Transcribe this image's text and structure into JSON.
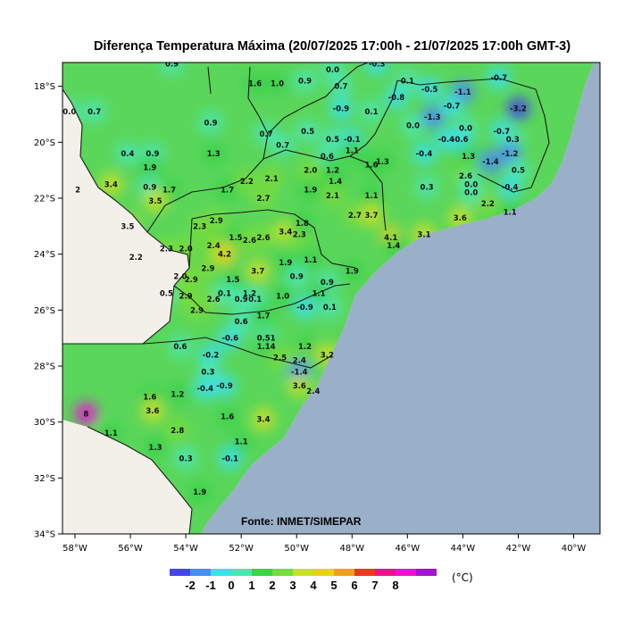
{
  "title": "Diferença Temperatura Máxima (20/07/2025 17:00h - 21/07/2025 17:00h GMT-3)",
  "source": "Fonte: INMET/SIMEPAR",
  "unit": "(°C)",
  "lat_labels": [
    "18°S",
    "20°S",
    "22°S",
    "24°S",
    "26°S",
    "28°S",
    "30°S",
    "32°S",
    "34°S"
  ],
  "lon_labels": [
    "58°W",
    "56°W",
    "54°W",
    "52°W",
    "50°W",
    "48°W",
    "46°W",
    "44°W",
    "42°W",
    "40°W"
  ],
  "colorbar": {
    "colors": [
      "#4646e6",
      "#4a8cf0",
      "#3ce0e6",
      "#4ee6b0",
      "#3cd24a",
      "#78dc3c",
      "#c8e02a",
      "#e6d21e",
      "#f0a020",
      "#e63c1e",
      "#e6148c",
      "#e614d2",
      "#a014d2"
    ],
    "labels": [
      "-2",
      "-1",
      "0",
      "1",
      "2",
      "3",
      "4",
      "5",
      "6",
      "7",
      "8"
    ]
  },
  "colors": {
    "land_default": "#5ad65a",
    "outside": "#f2f0e8",
    "ocean": "#9ab0c8"
  },
  "station_values": [
    {
      "v": "0.9",
      "lon": -54.5,
      "lat": -17.2
    },
    {
      "v": "1.6",
      "lon": -51.5,
      "lat": -17.9
    },
    {
      "v": "1.0",
      "lon": -50.7,
      "lat": -17.9
    },
    {
      "v": "0.9",
      "lon": -49.7,
      "lat": -17.8
    },
    {
      "v": "0.0",
      "lon": -48.7,
      "lat": -17.4
    },
    {
      "v": "0.7",
      "lon": -48.4,
      "lat": -18.0
    },
    {
      "v": "-0.3",
      "lon": -47.1,
      "lat": -17.2
    },
    {
      "v": "0.1",
      "lon": -46.0,
      "lat": -17.8
    },
    {
      "v": "-0.5",
      "lon": -45.2,
      "lat": -18.1
    },
    {
      "v": "-1.1",
      "lon": -44.0,
      "lat": -18.2
    },
    {
      "v": "-0.7",
      "lon": -42.7,
      "lat": -17.7
    },
    {
      "v": "-0.8",
      "lon": -46.4,
      "lat": -18.4
    },
    {
      "v": "-0.7",
      "lon": -44.4,
      "lat": -18.7
    },
    {
      "v": "-3.2",
      "lon": -42.0,
      "lat": -18.8
    },
    {
      "v": "0.0",
      "lon": -58.2,
      "lat": -18.9
    },
    {
      "v": "0.7",
      "lon": -57.3,
      "lat": -18.9
    },
    {
      "v": "0.9",
      "lon": -53.1,
      "lat": -19.3
    },
    {
      "v": "-0.9",
      "lon": -48.4,
      "lat": -18.8
    },
    {
      "v": "0.1",
      "lon": -47.3,
      "lat": -18.9
    },
    {
      "v": "-1.3",
      "lon": -45.1,
      "lat": -19.1
    },
    {
      "v": "0.0",
      "lon": -45.8,
      "lat": -19.4
    },
    {
      "v": "0.0",
      "lon": -43.9,
      "lat": -19.5
    },
    {
      "v": "0.5",
      "lon": -49.6,
      "lat": -19.6
    },
    {
      "v": "0.7",
      "lon": -51.1,
      "lat": -19.7
    },
    {
      "v": "-0.4",
      "lon": -44.6,
      "lat": -19.9
    },
    {
      "v": "-0.6",
      "lon": -44.1,
      "lat": -19.9
    },
    {
      "v": "-0.7",
      "lon": -42.6,
      "lat": -19.6
    },
    {
      "v": "0.3",
      "lon": -42.2,
      "lat": -19.9
    },
    {
      "v": "-1.2",
      "lon": -42.3,
      "lat": -20.4
    },
    {
      "v": "0.5",
      "lon": -48.7,
      "lat": -19.9
    },
    {
      "v": "-0.1",
      "lon": -48.0,
      "lat": -19.9
    },
    {
      "v": "0.7",
      "lon": -50.5,
      "lat": -20.1
    },
    {
      "v": "1.1",
      "lon": -48.0,
      "lat": -20.3
    },
    {
      "v": "0.4",
      "lon": -56.1,
      "lat": -20.4
    },
    {
      "v": "0.9",
      "lon": -55.2,
      "lat": -20.4
    },
    {
      "v": "1.3",
      "lon": -53.0,
      "lat": -20.4
    },
    {
      "v": "0.6",
      "lon": -48.9,
      "lat": -20.5
    },
    {
      "v": "-0.4",
      "lon": -45.4,
      "lat": -20.4
    },
    {
      "v": "1.3",
      "lon": -43.8,
      "lat": -20.5
    },
    {
      "v": "-1.4",
      "lon": -43.0,
      "lat": -20.7
    },
    {
      "v": "1.9",
      "lon": -55.3,
      "lat": -20.9
    },
    {
      "v": "1.6",
      "lon": -47.3,
      "lat": -20.8
    },
    {
      "v": "1.3",
      "lon": -46.9,
      "lat": -20.7
    },
    {
      "v": "0.5",
      "lon": -42.0,
      "lat": -21.0
    },
    {
      "v": "2.0",
      "lon": -49.5,
      "lat": -21.0
    },
    {
      "v": "1.2",
      "lon": -48.7,
      "lat": -21.0
    },
    {
      "v": "2.6",
      "lon": -43.9,
      "lat": -21.2
    },
    {
      "v": "2.2",
      "lon": -51.8,
      "lat": -21.4
    },
    {
      "v": "2.1",
      "lon": -50.9,
      "lat": -21.3
    },
    {
      "v": "1.4",
      "lon": -48.6,
      "lat": -21.4
    },
    {
      "v": "3.4",
      "lon": -56.7,
      "lat": -21.5
    },
    {
      "v": "0.9",
      "lon": -55.3,
      "lat": -21.6
    },
    {
      "v": "1.7",
      "lon": -54.6,
      "lat": -21.7
    },
    {
      "v": "1.7",
      "lon": -52.5,
      "lat": -21.7
    },
    {
      "v": "1.9",
      "lon": -49.5,
      "lat": -21.7
    },
    {
      "v": "2.1",
      "lon": -48.7,
      "lat": -21.9
    },
    {
      "v": "0.3",
      "lon": -45.3,
      "lat": -21.6
    },
    {
      "v": "0.0",
      "lon": -43.7,
      "lat": -21.5
    },
    {
      "v": "-0.4",
      "lon": -42.3,
      "lat": -21.6
    },
    {
      "v": "0.0",
      "lon": -43.7,
      "lat": -21.8
    },
    {
      "v": "1.1",
      "lon": -47.3,
      "lat": -21.9
    },
    {
      "v": "2",
      "lon": -57.9,
      "lat": -21.7
    },
    {
      "v": "3.5",
      "lon": -55.1,
      "lat": -22.1
    },
    {
      "v": "2.7",
      "lon": -51.2,
      "lat": -22.0
    },
    {
      "v": "2.7",
      "lon": -47.9,
      "lat": -22.6
    },
    {
      "v": "3.7",
      "lon": -47.3,
      "lat": -22.6
    },
    {
      "v": "1.1",
      "lon": -42.3,
      "lat": -22.5
    },
    {
      "v": "2.2",
      "lon": -43.1,
      "lat": -22.2
    },
    {
      "v": "3.5",
      "lon": -56.1,
      "lat": -23.0
    },
    {
      "v": "2.3",
      "lon": -53.5,
      "lat": -23.0
    },
    {
      "v": "2.9",
      "lon": -52.9,
      "lat": -22.8
    },
    {
      "v": "1.5",
      "lon": -52.2,
      "lat": -23.4
    },
    {
      "v": "2.6",
      "lon": -51.7,
      "lat": -23.5
    },
    {
      "v": "2.6",
      "lon": -51.2,
      "lat": -23.4
    },
    {
      "v": "3.4",
      "lon": -50.4,
      "lat": -23.2
    },
    {
      "v": "2.3",
      "lon": -49.9,
      "lat": -23.3
    },
    {
      "v": "1.8",
      "lon": -49.8,
      "lat": -22.9
    },
    {
      "v": "4.1",
      "lon": -46.6,
      "lat": -23.4
    },
    {
      "v": "1.4",
      "lon": -46.5,
      "lat": -23.7
    },
    {
      "v": "3.1",
      "lon": -45.4,
      "lat": -23.3
    },
    {
      "v": "3.6",
      "lon": -44.1,
      "lat": -22.7
    },
    {
      "v": "2.3",
      "lon": -54.7,
      "lat": -23.8
    },
    {
      "v": "2.0",
      "lon": -54.0,
      "lat": -23.8
    },
    {
      "v": "2.4",
      "lon": -53.0,
      "lat": -23.7
    },
    {
      "v": "4.2",
      "lon": -52.6,
      "lat": -24.0
    },
    {
      "v": "2.2",
      "lon": -55.8,
      "lat": -24.1
    },
    {
      "v": "2.9",
      "lon": -53.2,
      "lat": -24.5
    },
    {
      "v": "3.7",
      "lon": -51.4,
      "lat": -24.6
    },
    {
      "v": "1.9",
      "lon": -50.4,
      "lat": -24.3
    },
    {
      "v": "1.1",
      "lon": -49.5,
      "lat": -24.2
    },
    {
      "v": "1.9",
      "lon": -48.0,
      "lat": -24.6
    },
    {
      "v": "2.0",
      "lon": -54.2,
      "lat": -24.8
    },
    {
      "v": "2.9",
      "lon": -53.8,
      "lat": -24.9
    },
    {
      "v": "1.5",
      "lon": -52.3,
      "lat": -24.9
    },
    {
      "v": "0.9",
      "lon": -50.0,
      "lat": -24.8
    },
    {
      "v": "0.9",
      "lon": -48.9,
      "lat": -25.0
    },
    {
      "v": "0.5",
      "lon": -54.7,
      "lat": -25.4
    },
    {
      "v": "2.9",
      "lon": -54.0,
      "lat": -25.5
    },
    {
      "v": "2.6",
      "lon": -53.0,
      "lat": -25.6
    },
    {
      "v": "0.1",
      "lon": -52.6,
      "lat": -25.4
    },
    {
      "v": "1.2",
      "lon": -51.7,
      "lat": -25.4
    },
    {
      "v": "0.9",
      "lon": -52.0,
      "lat": -25.6
    },
    {
      "v": "0.1",
      "lon": -51.5,
      "lat": -25.6
    },
    {
      "v": "1.0",
      "lon": -50.5,
      "lat": -25.5
    },
    {
      "v": "1.1",
      "lon": -49.2,
      "lat": -25.4
    },
    {
      "v": "-0.9",
      "lon": -49.7,
      "lat": -25.9
    },
    {
      "v": "0.1",
      "lon": -48.8,
      "lat": -25.9
    },
    {
      "v": "2.9",
      "lon": -53.6,
      "lat": -26.0
    },
    {
      "v": "0.6",
      "lon": -52.0,
      "lat": -26.4
    },
    {
      "v": "1.7",
      "lon": -51.2,
      "lat": -26.2
    },
    {
      "v": "-0.6",
      "lon": -52.4,
      "lat": -27.0
    },
    {
      "v": "0.51",
      "lon": -51.1,
      "lat": -27.0
    },
    {
      "v": "1.14",
      "lon": -51.1,
      "lat": -27.3
    },
    {
      "v": "1.2",
      "lon": -49.7,
      "lat": -27.3
    },
    {
      "v": "0.6",
      "lon": -54.2,
      "lat": -27.3
    },
    {
      "v": "-0.2",
      "lon": -53.1,
      "lat": -27.6
    },
    {
      "v": "2.5",
      "lon": -50.6,
      "lat": -27.7
    },
    {
      "v": "2.4",
      "lon": -49.9,
      "lat": -27.8
    },
    {
      "v": "3.2",
      "lon": -48.9,
      "lat": -27.6
    },
    {
      "v": "0.3",
      "lon": -53.2,
      "lat": -28.2
    },
    {
      "v": "-1.4",
      "lon": -49.9,
      "lat": -28.2
    },
    {
      "v": "-0.4",
      "lon": -53.3,
      "lat": -28.8
    },
    {
      "v": "-0.9",
      "lon": -52.6,
      "lat": -28.7
    },
    {
      "v": "3.6",
      "lon": -49.9,
      "lat": -28.7
    },
    {
      "v": "2.4",
      "lon": -49.4,
      "lat": -28.9
    },
    {
      "v": "1.6",
      "lon": -55.3,
      "lat": -29.1
    },
    {
      "v": "1.2",
      "lon": -54.3,
      "lat": -29.0
    },
    {
      "v": "3.6",
      "lon": -55.2,
      "lat": -29.6
    },
    {
      "v": "1.6",
      "lon": -52.5,
      "lat": -29.8
    },
    {
      "v": "3.4",
      "lon": -51.2,
      "lat": -29.9
    },
    {
      "v": "2.8",
      "lon": -54.3,
      "lat": -30.3
    },
    {
      "v": "1.1",
      "lon": -56.7,
      "lat": -30.4
    },
    {
      "v": "1.1",
      "lon": -52.0,
      "lat": -30.7
    },
    {
      "v": "1.3",
      "lon": -55.1,
      "lat": -30.9
    },
    {
      "v": "0.3",
      "lon": -54.0,
      "lat": -31.3
    },
    {
      "v": "-0.1",
      "lon": -52.4,
      "lat": -31.3
    },
    {
      "v": "1.9",
      "lon": -53.5,
      "lat": -32.5
    },
    {
      "v": "8",
      "lon": -57.6,
      "lat": -29.7
    }
  ]
}
